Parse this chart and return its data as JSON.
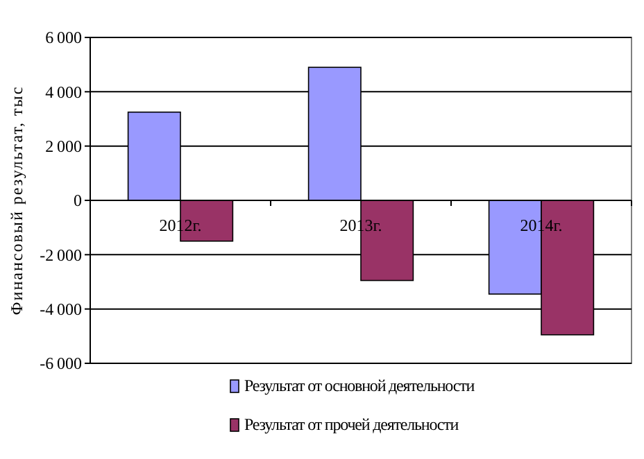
{
  "chart_data": {
    "type": "bar",
    "ylabel": "Финансовый результат, тыс",
    "categories": [
      "2012г.",
      "2013г.",
      "2014г."
    ],
    "series": [
      {
        "name": "Результат от основной деятельности",
        "color": "#9999ff",
        "values": [
          3250,
          4900,
          -3450
        ]
      },
      {
        "name": "Результат от прочей деятельности",
        "color": "#993366",
        "values": [
          -1500,
          -2950,
          -4950
        ]
      }
    ],
    "ylim": [
      -6000,
      6000
    ],
    "yticks": [
      -6000,
      -4000,
      -2000,
      0,
      2000,
      4000,
      6000
    ],
    "grid": "y",
    "legend": "bottom"
  }
}
